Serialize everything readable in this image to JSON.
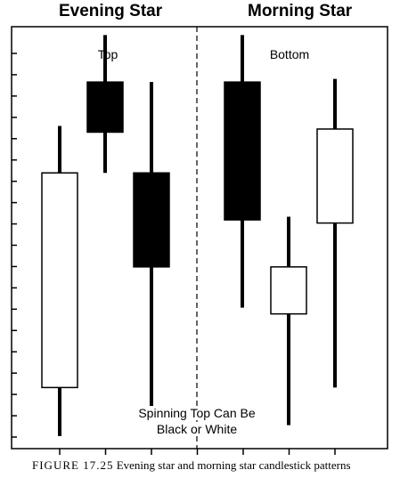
{
  "titles": {
    "left": "Evening Star",
    "right": "Morning Star"
  },
  "annotations": {
    "top": "Top",
    "bottom": "Bottom",
    "spinning_top_line1": "Spinning Top Can Be",
    "spinning_top_line2": "Black or White"
  },
  "caption": {
    "figure_label": "FIGURE 17.25",
    "text": "Evening star and morning star candlestick patterns"
  },
  "colors": {
    "bearish_body": "#000000",
    "bullish_body": "#ffffff",
    "line": "#000000"
  },
  "chart_data": {
    "type": "candlestick",
    "y_axis_ticks": 19,
    "x_axis_ticks": 7,
    "divider": "dashed",
    "groups": [
      {
        "name": "Evening Star",
        "annotation": "Top",
        "candles": [
          {
            "color": "white",
            "open": 3.9,
            "close": 17.6,
            "high": 20.6,
            "low": 0.8
          },
          {
            "color": "black",
            "open": 23.4,
            "close": 20.2,
            "high": 26.4,
            "low": 17.6
          },
          {
            "color": "black",
            "open": 17.6,
            "close": 11.6,
            "high": 23.4,
            "low": 2.7
          }
        ]
      },
      {
        "name": "Morning Star",
        "annotation": "Bottom",
        "candles": [
          {
            "color": "black",
            "open": 23.4,
            "close": 14.6,
            "high": 26.4,
            "low": 9.0
          },
          {
            "color": "white",
            "open": 8.6,
            "close": 11.6,
            "high": 14.8,
            "low": 1.5
          },
          {
            "color": "white",
            "open": 14.4,
            "close": 20.4,
            "high": 23.6,
            "low": 3.9
          }
        ]
      }
    ]
  }
}
